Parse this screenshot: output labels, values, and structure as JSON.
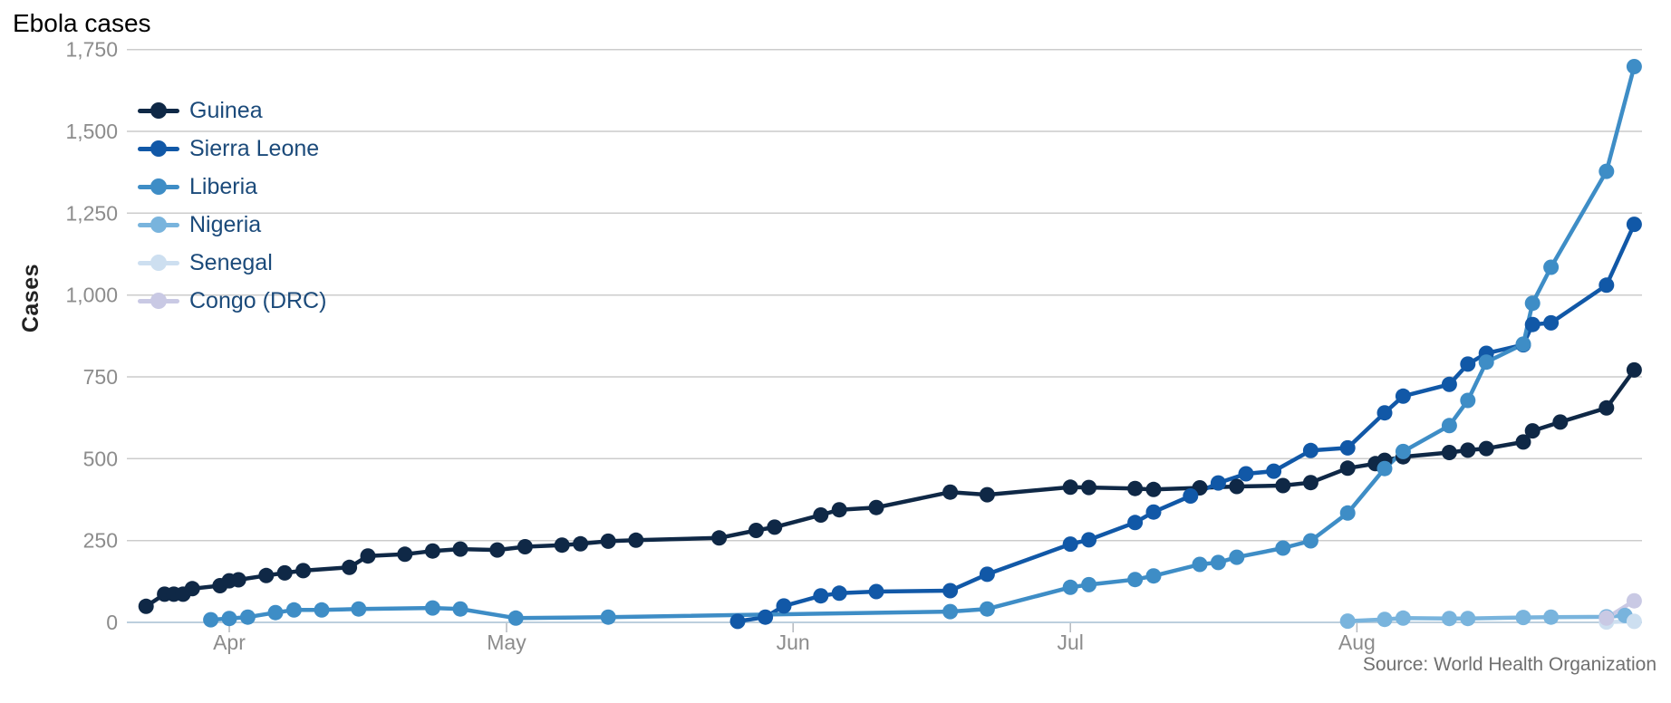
{
  "chart_data": {
    "type": "line",
    "title": "Ebola cases",
    "ylabel": "Cases",
    "source": "Source: World Health Organization",
    "background_color": "#ffffff",
    "grid": "horizontal",
    "grid_color": "#cccccc",
    "baseline_color": "#bccfdd",
    "tick_color": "#b4b9be",
    "tick_label_color": "#8c8c8c",
    "legend_text_color": "#1b4a7a",
    "legend_position": "top-left-inside",
    "ylim": [
      0,
      1750
    ],
    "y_ticks": [
      0,
      250,
      500,
      750,
      1000,
      1250,
      1500,
      1750
    ],
    "x_domain": [
      "2014-03-21",
      "2014-09-01"
    ],
    "x_ticks": [
      {
        "label": "Apr",
        "date": "2014-04-01"
      },
      {
        "label": "May",
        "date": "2014-05-01"
      },
      {
        "label": "Jun",
        "date": "2014-06-01"
      },
      {
        "label": "Jul",
        "date": "2014-07-01"
      },
      {
        "label": "Aug",
        "date": "2014-08-01"
      }
    ],
    "series": [
      {
        "name": "Guinea",
        "color": "#0f2846",
        "points": [
          [
            "2014-03-23",
            49
          ],
          [
            "2014-03-25",
            86
          ],
          [
            "2014-03-26",
            86
          ],
          [
            "2014-03-27",
            86
          ],
          [
            "2014-03-28",
            103
          ],
          [
            "2014-03-31",
            112
          ],
          [
            "2014-04-01",
            127
          ],
          [
            "2014-04-02",
            130
          ],
          [
            "2014-04-05",
            143
          ],
          [
            "2014-04-07",
            151
          ],
          [
            "2014-04-09",
            158
          ],
          [
            "2014-04-14",
            168
          ],
          [
            "2014-04-16",
            203
          ],
          [
            "2014-04-20",
            208
          ],
          [
            "2014-04-23",
            218
          ],
          [
            "2014-04-26",
            224
          ],
          [
            "2014-04-30",
            221
          ],
          [
            "2014-05-03",
            231
          ],
          [
            "2014-05-07",
            236
          ],
          [
            "2014-05-09",
            240
          ],
          [
            "2014-05-12",
            248
          ],
          [
            "2014-05-15",
            251
          ],
          [
            "2014-05-24",
            258
          ],
          [
            "2014-05-28",
            281
          ],
          [
            "2014-05-30",
            291
          ],
          [
            "2014-06-04",
            328
          ],
          [
            "2014-06-06",
            344
          ],
          [
            "2014-06-10",
            351
          ],
          [
            "2014-06-18",
            398
          ],
          [
            "2014-06-22",
            390
          ],
          [
            "2014-07-01",
            413
          ],
          [
            "2014-07-03",
            412
          ],
          [
            "2014-07-08",
            409
          ],
          [
            "2014-07-10",
            406
          ],
          [
            "2014-07-15",
            411
          ],
          [
            "2014-07-19",
            415
          ],
          [
            "2014-07-24",
            418
          ],
          [
            "2014-07-27",
            427
          ],
          [
            "2014-07-31",
            471
          ],
          [
            "2014-08-03",
            485
          ],
          [
            "2014-08-04",
            495
          ],
          [
            "2014-08-06",
            506
          ],
          [
            "2014-08-11",
            519
          ],
          [
            "2014-08-13",
            526
          ],
          [
            "2014-08-15",
            531
          ],
          [
            "2014-08-19",
            551
          ],
          [
            "2014-08-20",
            585
          ],
          [
            "2014-08-23",
            612
          ],
          [
            "2014-08-28",
            655
          ],
          [
            "2014-08-31",
            771
          ]
        ]
      },
      {
        "name": "Sierra Leone",
        "color": "#1158a7",
        "points": [
          [
            "2014-05-26",
            3
          ],
          [
            "2014-05-29",
            16
          ],
          [
            "2014-05-31",
            50
          ],
          [
            "2014-06-04",
            81
          ],
          [
            "2014-06-06",
            89
          ],
          [
            "2014-06-10",
            94
          ],
          [
            "2014-06-18",
            97
          ],
          [
            "2014-06-22",
            147
          ],
          [
            "2014-07-01",
            239
          ],
          [
            "2014-07-03",
            252
          ],
          [
            "2014-07-08",
            305
          ],
          [
            "2014-07-10",
            337
          ],
          [
            "2014-07-14",
            386
          ],
          [
            "2014-07-17",
            426
          ],
          [
            "2014-07-20",
            454
          ],
          [
            "2014-07-23",
            462
          ],
          [
            "2014-07-27",
            525
          ],
          [
            "2014-07-31",
            533
          ],
          [
            "2014-08-04",
            640
          ],
          [
            "2014-08-06",
            691
          ],
          [
            "2014-08-11",
            727
          ],
          [
            "2014-08-13",
            789
          ],
          [
            "2014-08-15",
            822
          ],
          [
            "2014-08-19",
            848
          ],
          [
            "2014-08-20",
            910
          ],
          [
            "2014-08-22",
            915
          ],
          [
            "2014-08-28",
            1030
          ],
          [
            "2014-08-31",
            1216
          ]
        ]
      },
      {
        "name": "Liberia",
        "color": "#3e8dc6",
        "points": [
          [
            "2014-03-30",
            8
          ],
          [
            "2014-04-01",
            12
          ],
          [
            "2014-04-03",
            16
          ],
          [
            "2014-04-06",
            30
          ],
          [
            "2014-04-08",
            38
          ],
          [
            "2014-04-11",
            38
          ],
          [
            "2014-04-15",
            41
          ],
          [
            "2014-04-23",
            44
          ],
          [
            "2014-04-26",
            41
          ],
          [
            "2014-05-02",
            13
          ],
          [
            "2014-05-12",
            16
          ],
          [
            "2014-06-18",
            33
          ],
          [
            "2014-06-22",
            41
          ],
          [
            "2014-07-01",
            107
          ],
          [
            "2014-07-03",
            115
          ],
          [
            "2014-07-08",
            131
          ],
          [
            "2014-07-10",
            142
          ],
          [
            "2014-07-15",
            177
          ],
          [
            "2014-07-17",
            183
          ],
          [
            "2014-07-19",
            199
          ],
          [
            "2014-07-24",
            227
          ],
          [
            "2014-07-27",
            249
          ],
          [
            "2014-07-31",
            334
          ],
          [
            "2014-08-04",
            470
          ],
          [
            "2014-08-06",
            522
          ],
          [
            "2014-08-11",
            601
          ],
          [
            "2014-08-13",
            678
          ],
          [
            "2014-08-15",
            795
          ],
          [
            "2014-08-19",
            850
          ],
          [
            "2014-08-20",
            975
          ],
          [
            "2014-08-22",
            1085
          ],
          [
            "2014-08-28",
            1378
          ],
          [
            "2014-08-31",
            1698
          ]
        ]
      },
      {
        "name": "Nigeria",
        "color": "#79b4dd",
        "points": [
          [
            "2014-07-31",
            4
          ],
          [
            "2014-08-04",
            9
          ],
          [
            "2014-08-06",
            13
          ],
          [
            "2014-08-11",
            12
          ],
          [
            "2014-08-13",
            12
          ],
          [
            "2014-08-19",
            15
          ],
          [
            "2014-08-22",
            16
          ],
          [
            "2014-08-28",
            17
          ],
          [
            "2014-08-30",
            21
          ]
        ]
      },
      {
        "name": "Senegal",
        "color": "#cddff0",
        "points": [
          [
            "2014-08-28",
            1
          ],
          [
            "2014-08-31",
            3
          ]
        ]
      },
      {
        "name": "Congo (DRC)",
        "color": "#c9c9e4",
        "points": [
          [
            "2014-08-28",
            13
          ],
          [
            "2014-08-31",
            66
          ]
        ]
      }
    ]
  }
}
